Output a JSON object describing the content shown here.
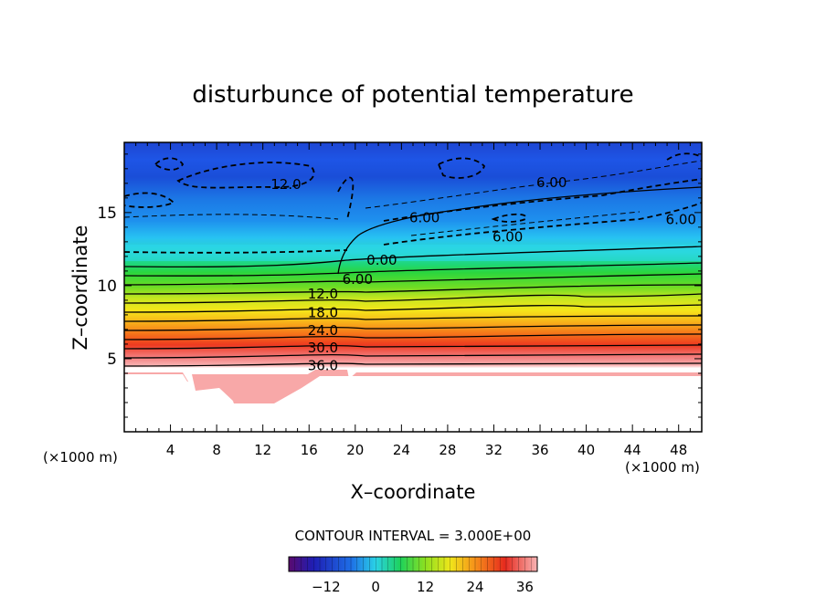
{
  "chart_data": {
    "type": "heatmap",
    "title": "disturbunce of potential temperature",
    "xlabel": "X–coordinate",
    "ylabel": "Z–coordinate",
    "x_unit": "(×1000 m)",
    "x_unit_right": "(×1000 m)",
    "xlim": [
      0,
      50
    ],
    "ylim": [
      0,
      19.8
    ],
    "x_ticks": [
      4,
      8,
      12,
      16,
      20,
      24,
      28,
      32,
      36,
      40,
      44,
      48
    ],
    "y_ticks": [
      5,
      10,
      15
    ],
    "contour_interval_text": "CONTOUR INTERVAL = 3.000E+00",
    "colorbar": {
      "range": [
        -21,
        39
      ],
      "ticks": [
        -12,
        0,
        12,
        24,
        36
      ],
      "tick_labels": [
        "−12",
        "0",
        "12",
        "24",
        "36"
      ]
    },
    "contour_labels": [
      {
        "text": "12.0",
        "x": 14.0,
        "y": 17.0
      },
      {
        "text": "6.00",
        "x": 37.0,
        "y": 17.1
      },
      {
        "text": "6.00",
        "x": 26.0,
        "y": 14.7
      },
      {
        "text": "6.00",
        "x": 33.2,
        "y": 13.4
      },
      {
        "text": "6.00",
        "x": 48.2,
        "y": 14.6
      },
      {
        "text": "0.00",
        "x": 22.3,
        "y": 11.8
      },
      {
        "text": "6.00",
        "x": 20.2,
        "y": 10.5
      },
      {
        "text": "12.0",
        "x": 17.2,
        "y": 9.5
      },
      {
        "text": "18.0",
        "x": 17.2,
        "y": 8.2
      },
      {
        "text": "24.0",
        "x": 17.2,
        "y": 7.0
      },
      {
        "text": "30.0",
        "x": 17.2,
        "y": 5.8
      },
      {
        "text": "36.0",
        "x": 17.2,
        "y": 4.6
      }
    ],
    "grid": false
  }
}
